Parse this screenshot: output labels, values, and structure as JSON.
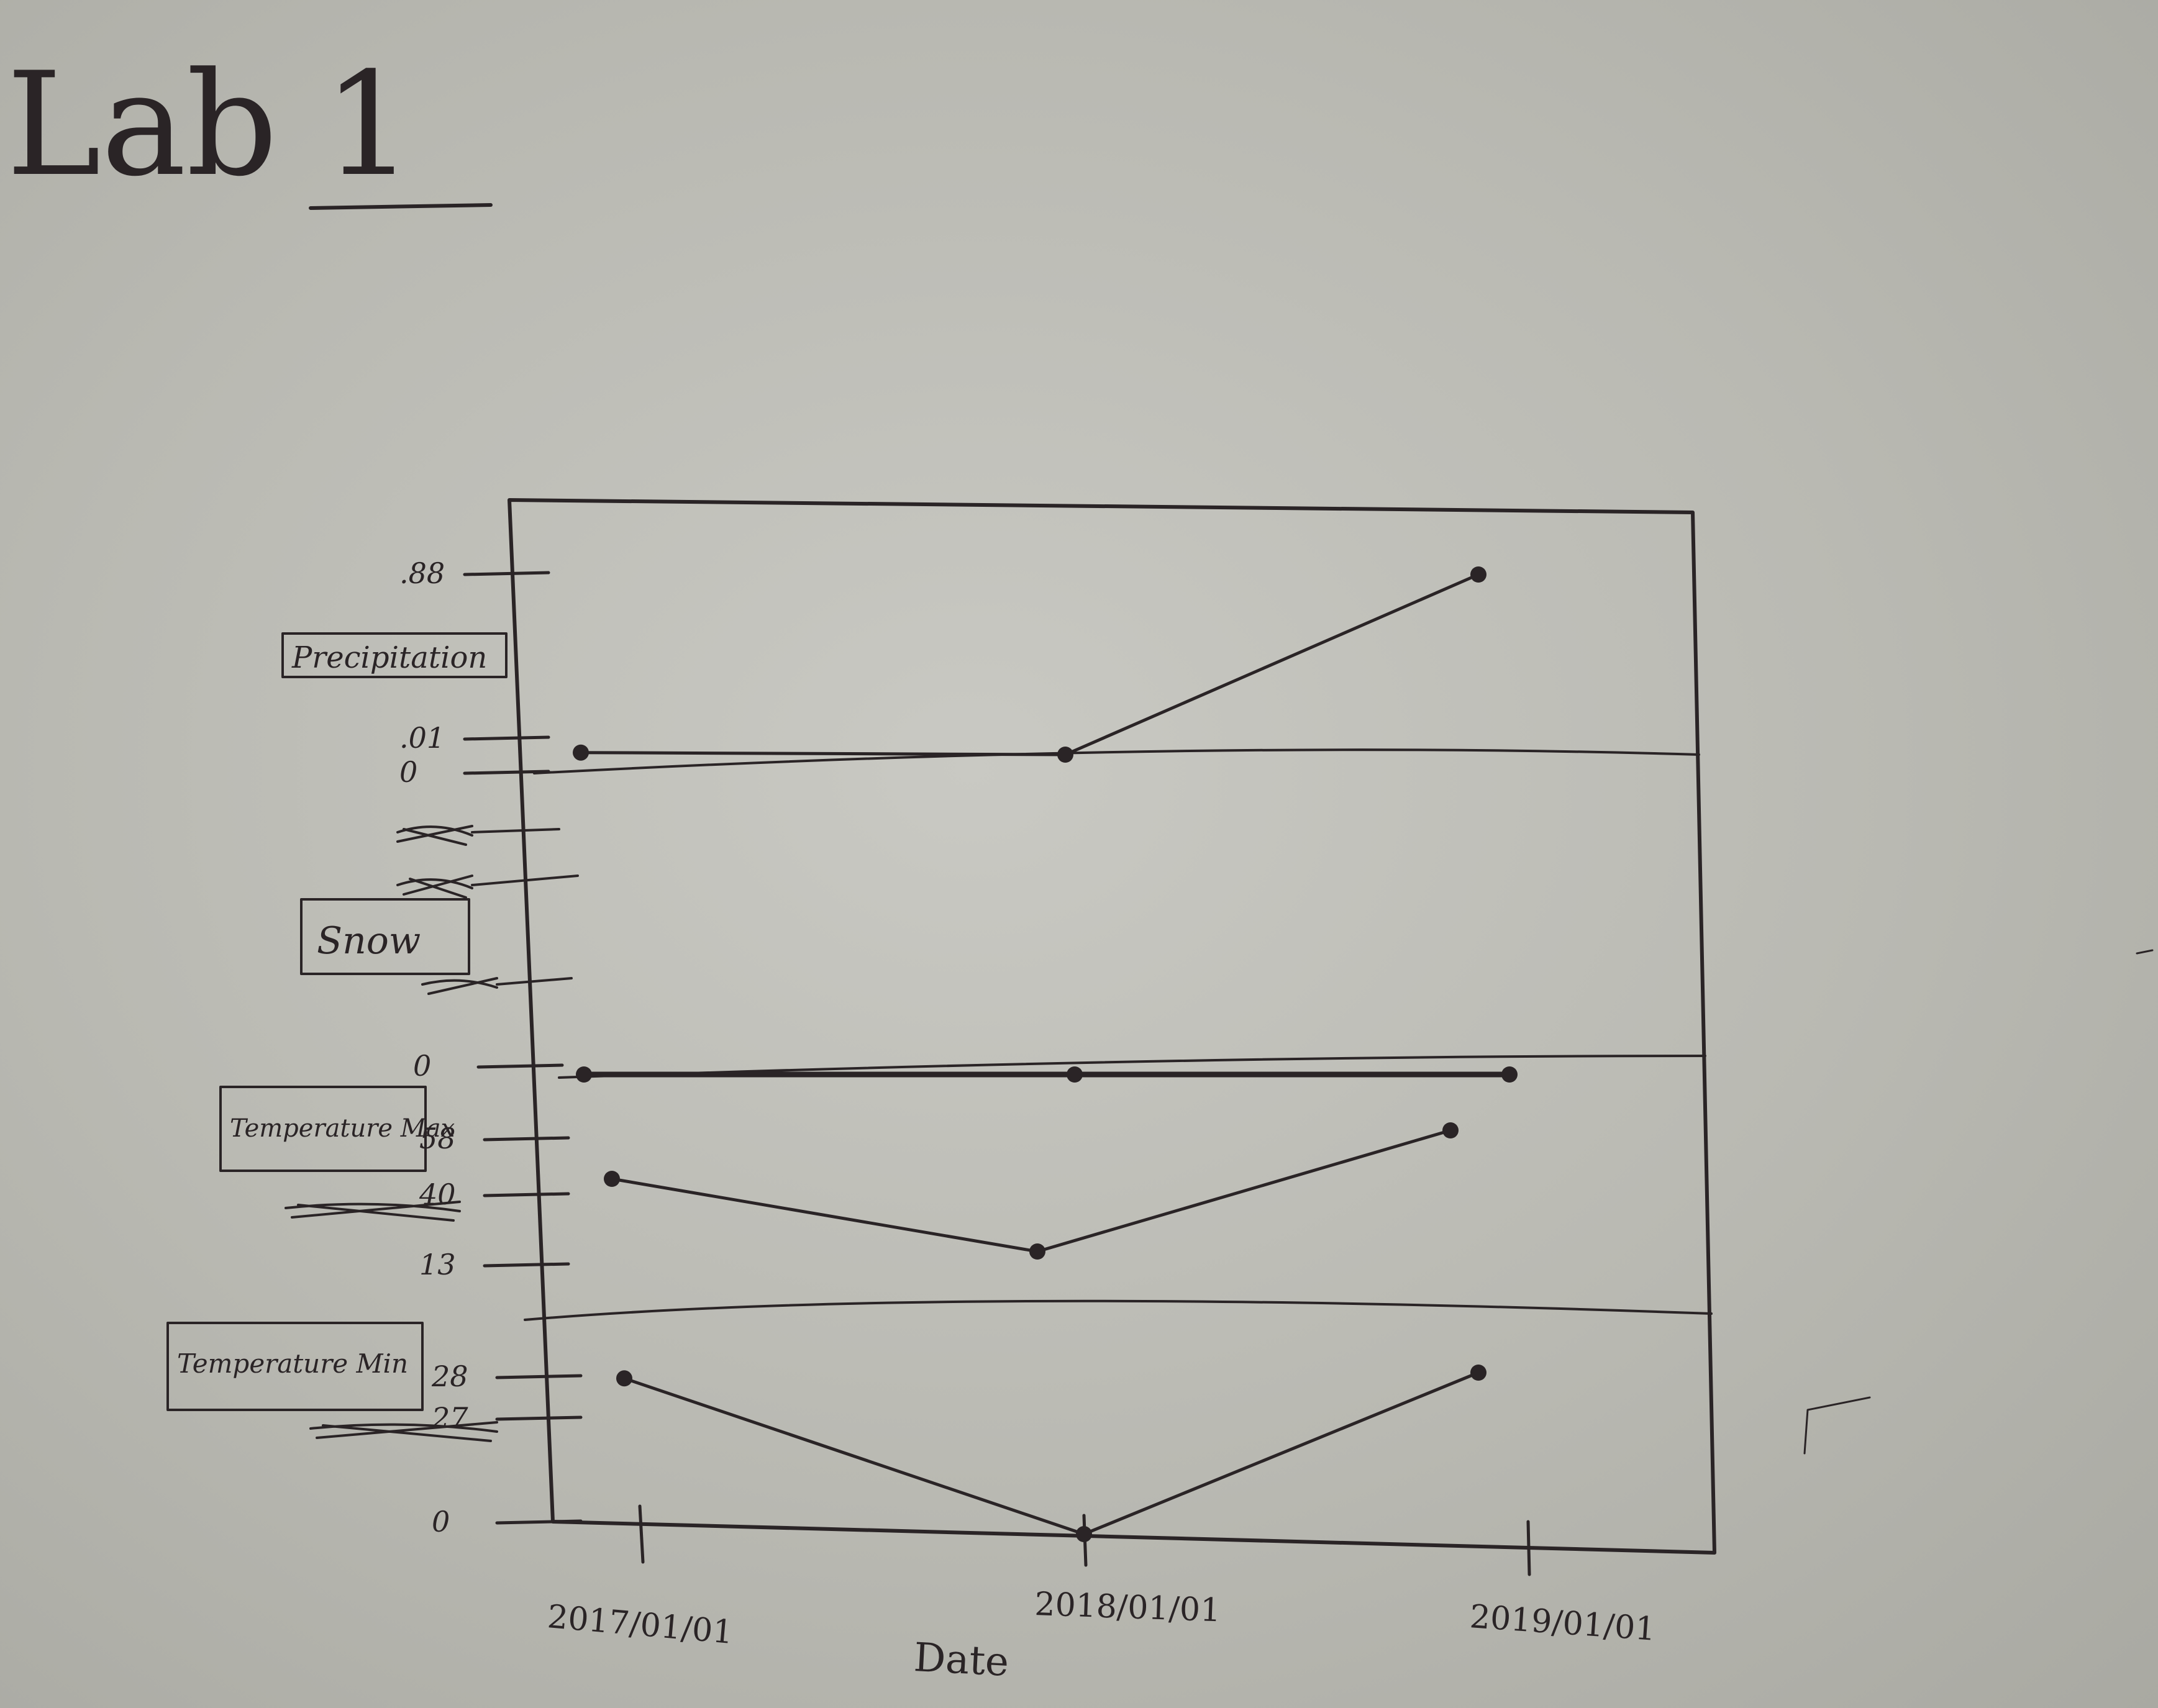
{
  "page": {
    "title": "Lab 1"
  },
  "chart_data": {
    "type": "line",
    "xlabel": "Date",
    "categories": [
      "2017/01/01",
      "2018/01/01",
      "2019/01/01"
    ],
    "panels": [
      {
        "name": "Precipitation",
        "tick_labels": [
          ".88",
          ".01",
          "0"
        ],
        "ylim": [
          0,
          0.88
        ],
        "values": [
          0.01,
          0.0,
          0.88
        ]
      },
      {
        "name": "Snow",
        "tick_labels": [
          "0"
        ],
        "ylim": [
          0,
          1
        ],
        "values": [
          0,
          0,
          0
        ]
      },
      {
        "name": "Temperature Max",
        "tick_labels": [
          "58",
          "40",
          "13"
        ],
        "ylim": [
          13,
          58
        ],
        "values": [
          40,
          13,
          58
        ]
      },
      {
        "name": "Temperature Min",
        "tick_labels": [
          "28",
          "27",
          "0"
        ],
        "ylim": [
          0,
          28
        ],
        "values": [
          27,
          0,
          28
        ]
      }
    ]
  }
}
